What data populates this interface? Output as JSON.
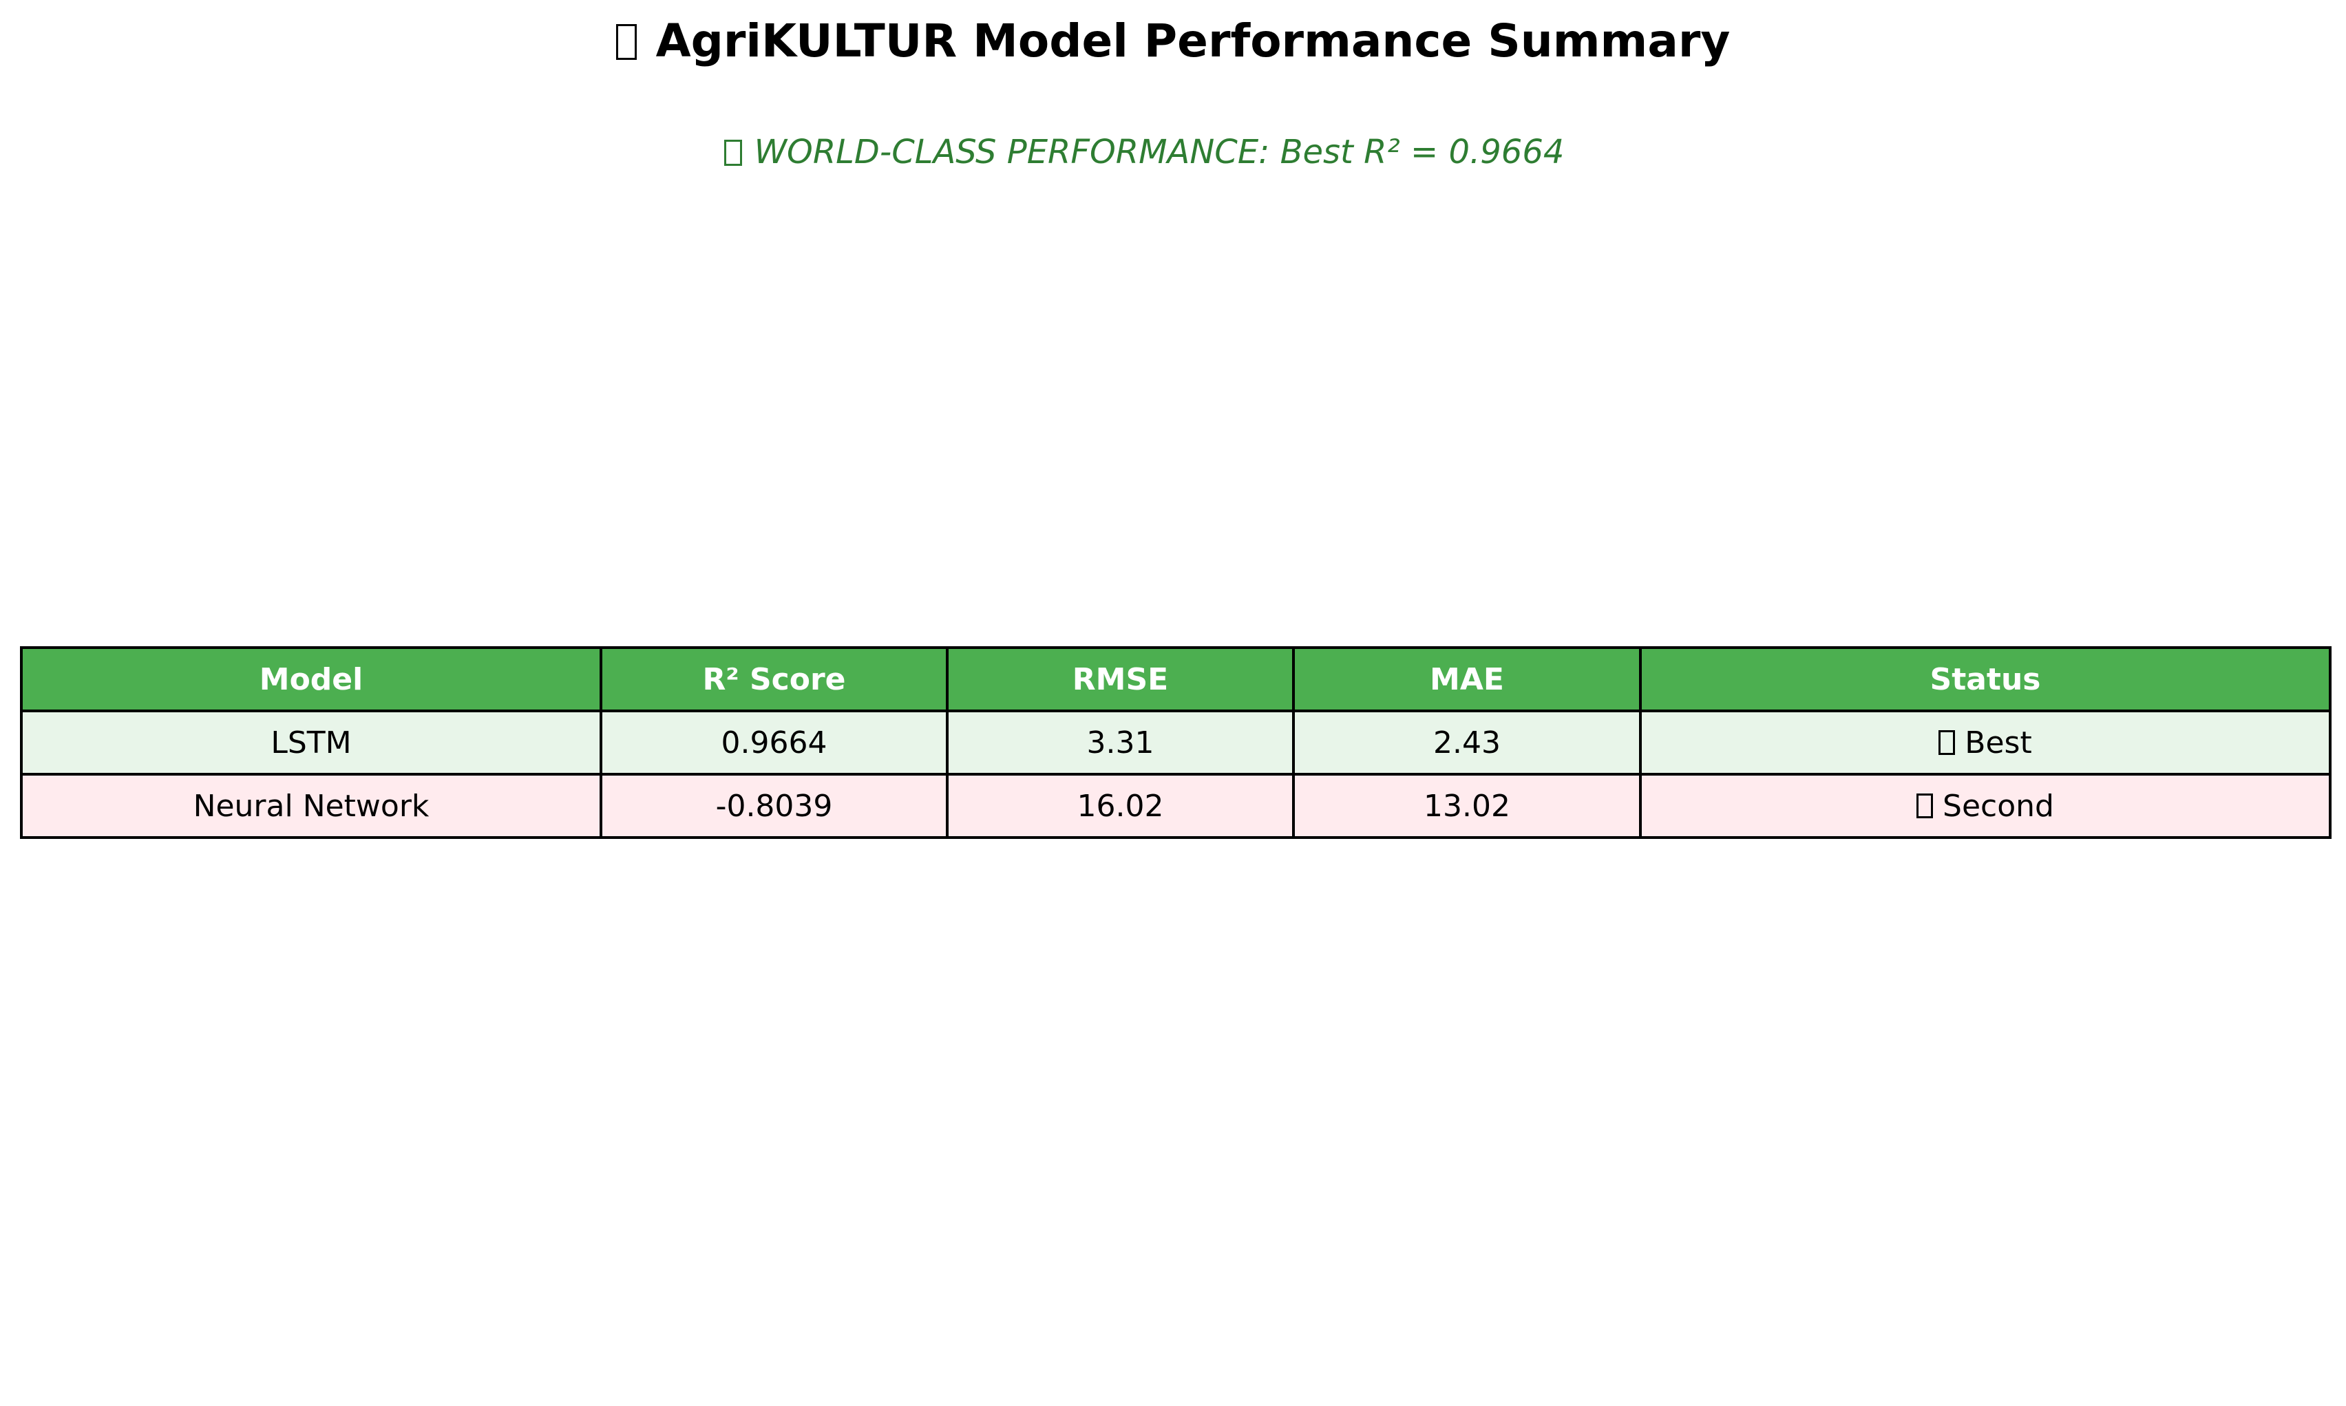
{
  "title": {
    "icon": "box-glyph-icon",
    "text": "AgriKULTUR Model Performance Summary"
  },
  "subtitle": {
    "icon": "box-glyph-icon",
    "text": "WORLD-CLASS PERFORMANCE: Best R² = 0.9664",
    "color": "#2e7d32"
  },
  "chart_data": {
    "type": "table",
    "columns": [
      "Model",
      "R² Score",
      "RMSE",
      "MAE",
      "Status"
    ],
    "rows": [
      {
        "model": "LSTM",
        "r2": "0.9664",
        "rmse": "3.31",
        "mae": "2.43",
        "status": "Best",
        "status_icon": "box-glyph-icon",
        "row_color": "#e8f5e9"
      },
      {
        "model": "Neural Network",
        "r2": "-0.8039",
        "rmse": "16.02",
        "mae": "13.02",
        "status": "Second",
        "status_icon": "box-glyph-icon",
        "row_color": "#ffebee"
      }
    ],
    "header_color": "#4caf50"
  }
}
